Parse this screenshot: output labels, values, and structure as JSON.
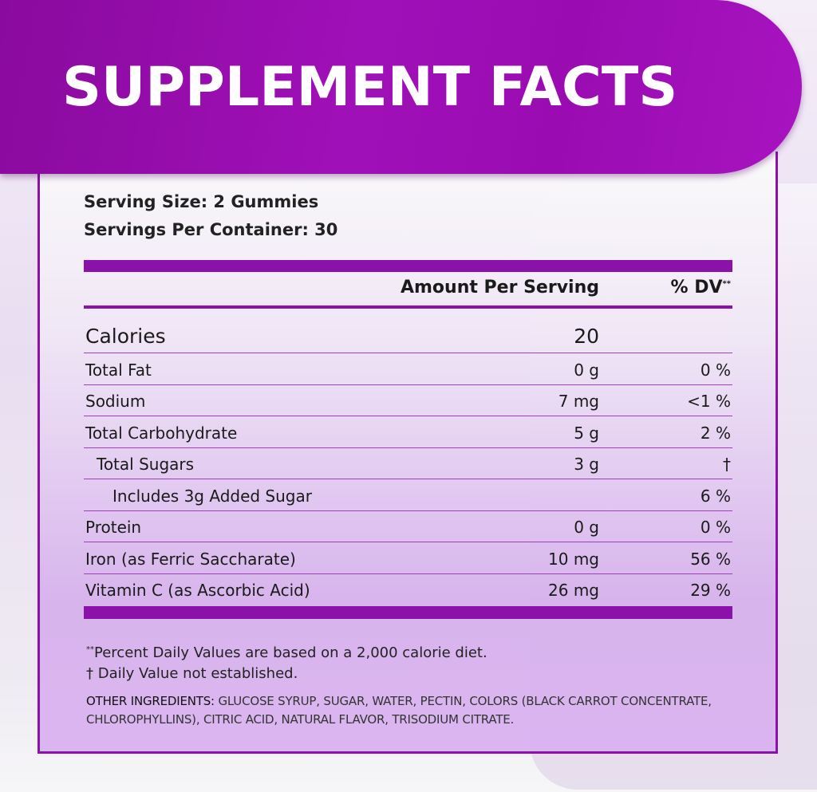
{
  "title": "SUPPLEMENT FACTS",
  "serving_size": "Serving Size: 2 Gummies",
  "servings_per_container": "Servings Per Container: 30",
  "header": {
    "amount": "Amount Per Serving",
    "dv": "% DV",
    "dv_mark": "**"
  },
  "rows": [
    {
      "name": "Calories",
      "amount": "20",
      "dv": ""
    },
    {
      "name": "Total Fat",
      "amount": "0 g",
      "dv": "0 %"
    },
    {
      "name": "Sodium",
      "amount": "7 mg",
      "dv": "<1 %"
    },
    {
      "name": "Total Carbohydrate",
      "amount": "5 g",
      "dv": "2 %"
    },
    {
      "name": "Total Sugars",
      "amount": "3 g",
      "dv": "†"
    },
    {
      "name": "Includes 3g Added Sugar",
      "amount": "",
      "dv": "6 %"
    },
    {
      "name": "Protein",
      "amount": "0 g",
      "dv": "0 %"
    },
    {
      "name": "Iron (as Ferric Saccharate)",
      "amount": "10 mg",
      "dv": "56 %"
    },
    {
      "name": "Vitamin C (as Ascorbic Acid)",
      "amount": "26 mg",
      "dv": "29 %"
    }
  ],
  "footnotes": {
    "dv_mark": "**",
    "dv_note": "Percent Daily Values are based on a 2,000 calorie diet.",
    "dagger_note": "† Daily Value not established."
  },
  "ingredients": {
    "label": "OTHER INGREDIENTS:",
    "text": " GLUCOSE SYRUP, SUGAR, WATER, PECTIN, COLORS (BLACK CARROT CONCENTRATE, CHLOROPHYLLINS), CITRIC ACID, NATURAL FLAVOR, TRISODIUM CITRATE."
  },
  "colors": {
    "brand_purple": "#8a12a8"
  }
}
